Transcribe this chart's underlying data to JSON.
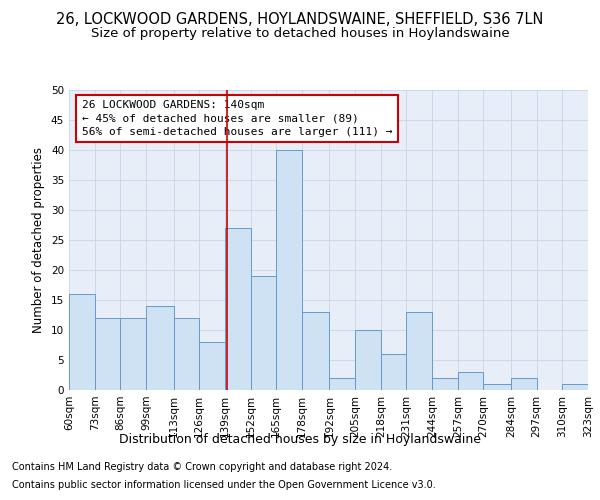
{
  "title_line1": "26, LOCKWOOD GARDENS, HOYLANDSWAINE, SHEFFIELD, S36 7LN",
  "title_line2": "Size of property relative to detached houses in Hoylandswaine",
  "xlabel": "Distribution of detached houses by size in Hoylandswaine",
  "ylabel": "Number of detached properties",
  "footnote1": "Contains HM Land Registry data © Crown copyright and database right 2024.",
  "footnote2": "Contains public sector information licensed under the Open Government Licence v3.0.",
  "annotation_line1": "26 LOCKWOOD GARDENS: 140sqm",
  "annotation_line2": "← 45% of detached houses are smaller (89)",
  "annotation_line3": "56% of semi-detached houses are larger (111) →",
  "bar_left_edges": [
    60,
    73,
    86,
    99,
    113,
    126,
    139,
    152,
    165,
    178,
    192,
    205,
    218,
    231,
    244,
    257,
    270,
    284,
    297,
    310
  ],
  "bar_widths": [
    13,
    13,
    13,
    14,
    13,
    13,
    13,
    13,
    13,
    14,
    13,
    13,
    13,
    13,
    13,
    13,
    14,
    13,
    13,
    13
  ],
  "bar_heights": [
    16,
    12,
    12,
    14,
    12,
    8,
    27,
    19,
    40,
    13,
    2,
    10,
    6,
    13,
    2,
    3,
    1,
    2,
    0,
    1
  ],
  "bar_color": "#cfe2f3",
  "bar_edge_color": "#6699cc",
  "redline_x": 140,
  "ylim": [
    0,
    50
  ],
  "yticks": [
    0,
    5,
    10,
    15,
    20,
    25,
    30,
    35,
    40,
    45,
    50
  ],
  "tick_labels": [
    "60sqm",
    "73sqm",
    "86sqm",
    "99sqm",
    "113sqm",
    "126sqm",
    "139sqm",
    "152sqm",
    "165sqm",
    "178sqm",
    "192sqm",
    "205sqm",
    "218sqm",
    "231sqm",
    "244sqm",
    "257sqm",
    "270sqm",
    "284sqm",
    "297sqm",
    "310sqm",
    "323sqm"
  ],
  "annotation_box_color": "#cc0000",
  "title_fontsize": 10.5,
  "subtitle_fontsize": 9.5,
  "axis_label_fontsize": 8.5,
  "tick_fontsize": 7.5,
  "annotation_fontsize": 8,
  "footnote_fontsize": 7,
  "xlabel_fontsize": 9,
  "background_color": "#ffffff",
  "plot_bg_color": "#e8eef8",
  "grid_color": "#c8d4e8"
}
